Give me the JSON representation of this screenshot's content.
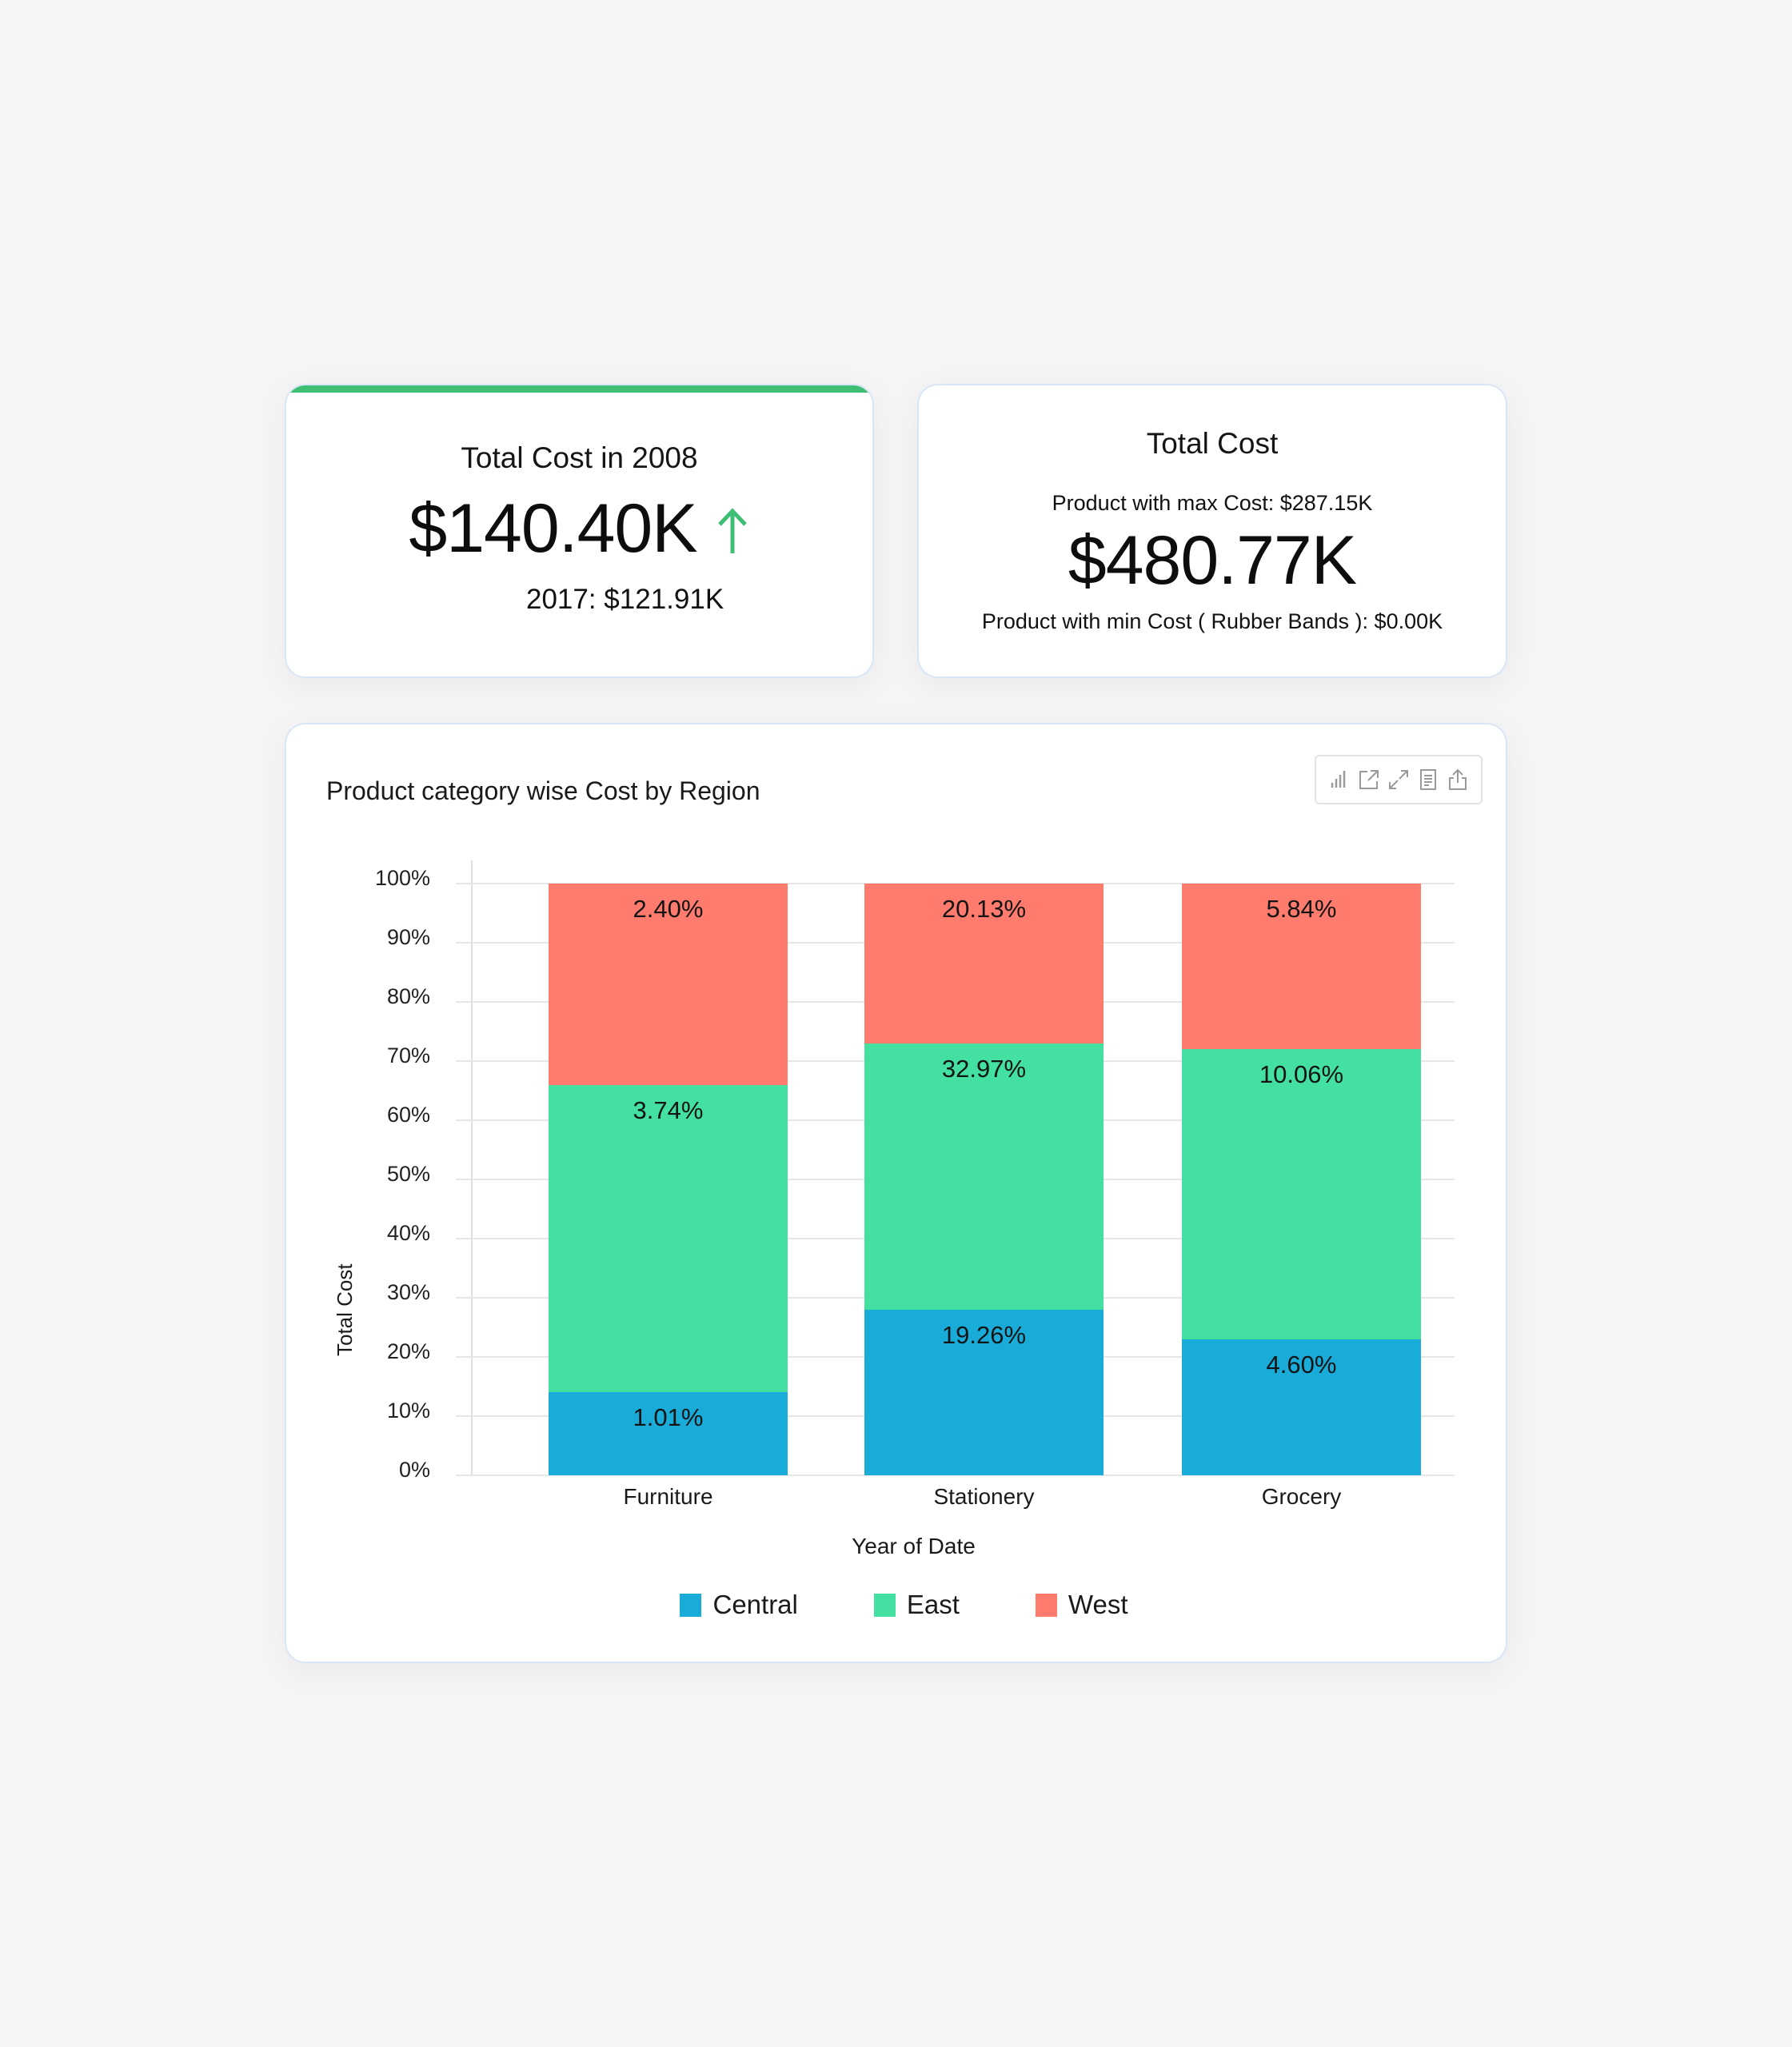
{
  "colors": {
    "accent_green": "#3fbe76",
    "arrow_up": "#3fbe76",
    "central": "#1aacd9",
    "east": "#43e0a1",
    "west": "#ff7b6e",
    "card_border": "#d9e6f5",
    "background": "#f5f5f6"
  },
  "kpi_card_1": {
    "title": "Total Cost in 2008",
    "value": "$140.40K",
    "trend_icon": "arrow-up-icon",
    "comparison": "2017: $121.91K"
  },
  "kpi_card_2": {
    "title": "Total Cost",
    "max_line": "Product with max Cost: $287.15K",
    "value": "$480.77K",
    "min_line": "Product with min Cost ( Rubber Bands ): $0.00K"
  },
  "chart_card": {
    "title": "Product category wise Cost by Region",
    "toolbar": [
      {
        "name": "chart-type-icon",
        "label": "Chart type"
      },
      {
        "name": "open-external-icon",
        "label": "Open"
      },
      {
        "name": "expand-icon",
        "label": "Expand"
      },
      {
        "name": "document-icon",
        "label": "Data"
      },
      {
        "name": "export-icon",
        "label": "Export"
      }
    ]
  },
  "chart_data": {
    "type": "bar",
    "stacked": true,
    "normalized_percent": true,
    "title": "Product category wise Cost by Region",
    "xlabel": "Year of Date",
    "ylabel": "Total Cost",
    "ylim": [
      0,
      100
    ],
    "y_ticks": [
      "0%",
      "10%",
      "20%",
      "30%",
      "40%",
      "50%",
      "60%",
      "70%",
      "80%",
      "90%",
      "100%"
    ],
    "grid": true,
    "legend_position": "bottom",
    "categories": [
      "Furniture",
      "Stationery",
      "Grocery"
    ],
    "series": [
      {
        "name": "Central",
        "color": "#1aacd9",
        "values": [
          14,
          28,
          23
        ],
        "value_note": "rendered share of category bar (%), estimated from pixels",
        "data_labels": [
          "1.01%",
          "19.26%",
          "4.60%"
        ]
      },
      {
        "name": "East",
        "color": "#43e0a1",
        "values": [
          52,
          45,
          49
        ],
        "value_note": "rendered share of category bar (%), estimated from pixels",
        "data_labels": [
          "3.74%",
          "32.97%",
          "10.06%"
        ]
      },
      {
        "name": "West",
        "color": "#ff7b6e",
        "values": [
          34,
          27,
          28
        ],
        "value_note": "rendered share of category bar (%), estimated from pixels",
        "data_labels": [
          "2.40%",
          "20.13%",
          "5.84%"
        ]
      }
    ],
    "note": "Bars render each region's share within its category (100% stacked). The printed data labels are a different measure and do not match the rendered segment heights; values[] are pixel estimates of the rendered shares, data_labels[] are the text shown on screen."
  }
}
